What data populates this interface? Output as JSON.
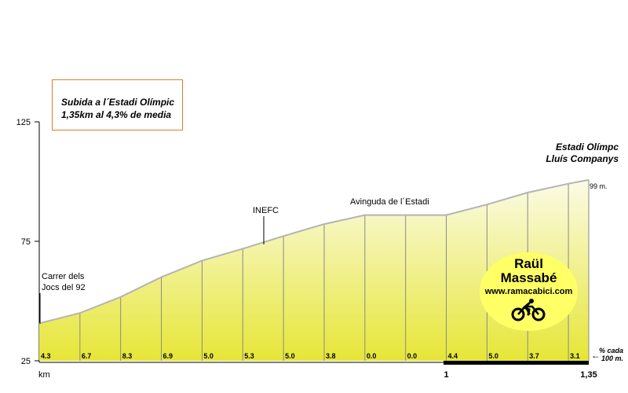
{
  "chart_data": {
    "type": "area",
    "title_line1": "Subida a l´Estadi Olímpic",
    "title_line2": "1,35km  al 4,3% de media",
    "xlabel": "km",
    "x_tick_labels": [
      "1",
      "1,35"
    ],
    "ylim": [
      25,
      125
    ],
    "y_ticks": [
      25,
      75,
      125
    ],
    "distance_x": [
      0,
      0.1,
      0.2,
      0.3,
      0.4,
      0.5,
      0.6,
      0.7,
      0.8,
      0.9,
      1.0,
      1.1,
      1.2,
      1.3,
      1.35
    ],
    "elevation_y": [
      40.7,
      45.0,
      51.7,
      60.0,
      66.9,
      71.9,
      77.2,
      82.2,
      86.0,
      86.0,
      86.0,
      90.4,
      95.4,
      99.1,
      100.7
    ],
    "gradient_labels": [
      "4.3",
      "6.7",
      "8.3",
      "6.9",
      "5.0",
      "5.3",
      "5.0",
      "3.8",
      "0.0",
      "0.0",
      "4.4",
      "5.0",
      "3.7",
      "3.1"
    ],
    "annotations": {
      "start_line1": "Carrer dels",
      "start_line2": "Jocs del 92",
      "inefc": "INEFC",
      "avinguda": "Avinguda de l´Estadi",
      "summit_line1": "Estadi Olímpc",
      "summit_line2": "Lluís Companys",
      "summit_elev": "99 m."
    },
    "gradient_unit_line1": "% cada",
    "gradient_unit_line2": "100 m.",
    "grid": false
  },
  "logo": {
    "line1": "Raül",
    "line2": "Massabé",
    "url": "www.ramacabici.com"
  },
  "colors": {
    "fill_top": "#fdfdf0",
    "fill_bottom": "#e8e840",
    "profile_line": "#b4b4b4",
    "title_border": "#e07a2c",
    "logo_bg": "#ffff66"
  }
}
